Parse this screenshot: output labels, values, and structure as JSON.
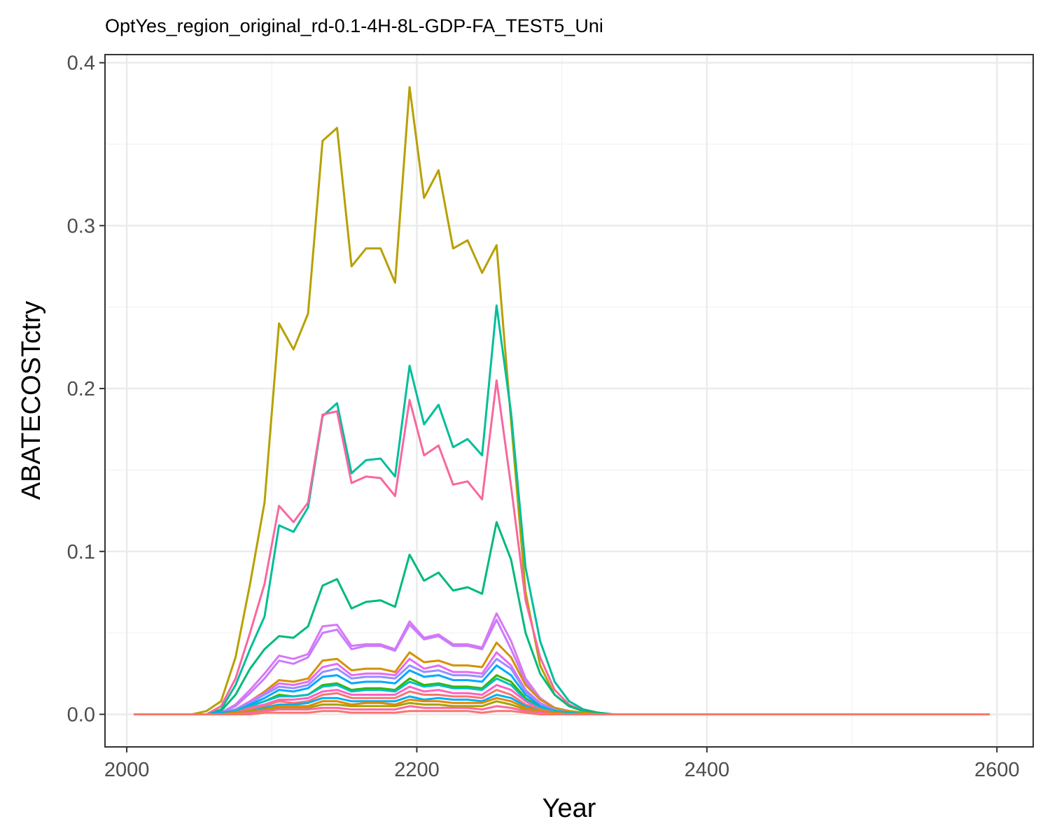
{
  "chart_data": {
    "type": "line",
    "title": "OptYes_region_original_rd-0.1-4H-8L-GDP-FA_TEST5_Uni",
    "xlabel": "Year",
    "ylabel": "ABATECOSTctry",
    "xlim": [
      1985,
      2625
    ],
    "ylim": [
      -0.02,
      0.405
    ],
    "x_ticks": [
      2000,
      2200,
      2400,
      2600
    ],
    "x_tick_labels": [
      "2000",
      "2200",
      "2400",
      "2600"
    ],
    "y_ticks": [
      0.0,
      0.1,
      0.2,
      0.3,
      0.4
    ],
    "y_tick_labels": [
      "0.0",
      "0.1",
      "0.2",
      "0.3",
      "0.4"
    ],
    "grid": true,
    "legend": "none",
    "x": [
      2005,
      2015,
      2025,
      2035,
      2045,
      2055,
      2065,
      2075,
      2085,
      2095,
      2105,
      2115,
      2125,
      2135,
      2145,
      2155,
      2165,
      2175,
      2185,
      2195,
      2205,
      2215,
      2225,
      2235,
      2245,
      2255,
      2265,
      2275,
      2285,
      2295,
      2305,
      2315,
      2325,
      2335,
      2345,
      2355,
      2365,
      2375,
      2385,
      2395,
      2405,
      2415,
      2425,
      2435,
      2445,
      2455,
      2465,
      2475,
      2485,
      2495,
      2505,
      2515,
      2525,
      2535,
      2545,
      2555,
      2565,
      2575,
      2585,
      2595
    ],
    "series": [
      {
        "color": "#B8A000",
        "values": [
          0,
          0,
          0,
          0,
          0,
          0.002,
          0.008,
          0.035,
          0.08,
          0.13,
          0.24,
          0.224,
          0.246,
          0.352,
          0.36,
          0.275,
          0.286,
          0.286,
          0.265,
          0.385,
          0.317,
          0.334,
          0.286,
          0.291,
          0.271,
          0.288,
          0.18,
          0.075,
          0.03,
          0.012,
          0.005,
          0.002,
          0.001,
          0,
          0,
          0,
          0,
          0,
          0,
          0,
          0,
          0,
          0,
          0,
          0,
          0,
          0,
          0,
          0,
          0,
          0,
          0,
          0,
          0,
          0,
          0,
          0,
          0,
          0,
          0
        ]
      },
      {
        "color": "#00BE9B",
        "values": [
          0,
          0,
          0,
          0,
          0,
          0,
          0.003,
          0.018,
          0.04,
          0.06,
          0.116,
          0.112,
          0.127,
          0.183,
          0.191,
          0.148,
          0.156,
          0.157,
          0.146,
          0.214,
          0.178,
          0.19,
          0.164,
          0.169,
          0.159,
          0.251,
          0.185,
          0.09,
          0.045,
          0.02,
          0.008,
          0.003,
          0.001,
          0,
          0,
          0,
          0,
          0,
          0,
          0,
          0,
          0,
          0,
          0,
          0,
          0,
          0,
          0,
          0,
          0,
          0,
          0,
          0,
          0,
          0,
          0,
          0,
          0,
          0,
          0
        ]
      },
      {
        "color": "#F8679F",
        "values": [
          0,
          0,
          0,
          0,
          0,
          0,
          0.005,
          0.022,
          0.05,
          0.08,
          0.128,
          0.118,
          0.13,
          0.184,
          0.186,
          0.142,
          0.146,
          0.145,
          0.134,
          0.193,
          0.159,
          0.165,
          0.141,
          0.143,
          0.132,
          0.205,
          0.14,
          0.07,
          0.035,
          0.015,
          0.006,
          0.002,
          0.001,
          0,
          0,
          0,
          0,
          0,
          0,
          0,
          0,
          0,
          0,
          0,
          0,
          0,
          0,
          0,
          0,
          0,
          0,
          0,
          0,
          0,
          0,
          0,
          0,
          0,
          0,
          0
        ]
      },
      {
        "color": "#00BA7A",
        "values": [
          0,
          0,
          0,
          0,
          0,
          0,
          0.002,
          0.012,
          0.028,
          0.04,
          0.048,
          0.047,
          0.054,
          0.079,
          0.083,
          0.065,
          0.069,
          0.07,
          0.066,
          0.098,
          0.082,
          0.087,
          0.076,
          0.078,
          0.074,
          0.118,
          0.095,
          0.05,
          0.025,
          0.012,
          0.005,
          0.002,
          0.001,
          0,
          0,
          0,
          0,
          0,
          0,
          0,
          0,
          0,
          0,
          0,
          0,
          0,
          0,
          0,
          0,
          0,
          0,
          0,
          0,
          0,
          0,
          0,
          0,
          0,
          0,
          0
        ]
      },
      {
        "color": "#D977F5",
        "values": [
          0,
          0,
          0,
          0,
          0,
          0,
          0.001,
          0.006,
          0.015,
          0.025,
          0.036,
          0.034,
          0.037,
          0.054,
          0.055,
          0.042,
          0.043,
          0.043,
          0.04,
          0.057,
          0.047,
          0.049,
          0.043,
          0.043,
          0.041,
          0.062,
          0.045,
          0.022,
          0.01,
          0.004,
          0.002,
          0.001,
          0,
          0,
          0,
          0,
          0,
          0,
          0,
          0,
          0,
          0,
          0,
          0,
          0,
          0,
          0,
          0,
          0,
          0,
          0,
          0,
          0,
          0,
          0,
          0,
          0,
          0,
          0,
          0
        ]
      },
      {
        "color": "#C77CFF",
        "values": [
          0,
          0,
          0,
          0,
          0,
          0,
          0.001,
          0.005,
          0.013,
          0.022,
          0.033,
          0.031,
          0.035,
          0.05,
          0.052,
          0.04,
          0.042,
          0.042,
          0.039,
          0.055,
          0.046,
          0.048,
          0.042,
          0.042,
          0.04,
          0.058,
          0.04,
          0.02,
          0.009,
          0.004,
          0.002,
          0.001,
          0,
          0,
          0,
          0,
          0,
          0,
          0,
          0,
          0,
          0,
          0,
          0,
          0,
          0,
          0,
          0,
          0,
          0,
          0,
          0,
          0,
          0,
          0,
          0,
          0,
          0,
          0,
          0
        ]
      },
      {
        "color": "#D39200",
        "values": [
          0,
          0,
          0,
          0,
          0,
          0,
          0.001,
          0.003,
          0.008,
          0.014,
          0.021,
          0.02,
          0.022,
          0.033,
          0.034,
          0.027,
          0.028,
          0.028,
          0.026,
          0.038,
          0.032,
          0.033,
          0.03,
          0.03,
          0.029,
          0.044,
          0.035,
          0.018,
          0.009,
          0.004,
          0.002,
          0.001,
          0,
          0,
          0,
          0,
          0,
          0,
          0,
          0,
          0,
          0,
          0,
          0,
          0,
          0,
          0,
          0,
          0,
          0,
          0,
          0,
          0,
          0,
          0,
          0,
          0,
          0,
          0,
          0
        ]
      },
      {
        "color": "#E76BF3",
        "values": [
          0,
          0,
          0,
          0,
          0,
          0,
          0.001,
          0.003,
          0.008,
          0.013,
          0.019,
          0.018,
          0.02,
          0.029,
          0.031,
          0.024,
          0.025,
          0.025,
          0.024,
          0.034,
          0.028,
          0.03,
          0.026,
          0.026,
          0.025,
          0.038,
          0.03,
          0.015,
          0.007,
          0.003,
          0.001,
          0,
          0,
          0,
          0,
          0,
          0,
          0,
          0,
          0,
          0,
          0,
          0,
          0,
          0,
          0,
          0,
          0,
          0,
          0,
          0,
          0,
          0,
          0,
          0,
          0,
          0,
          0,
          0,
          0
        ]
      },
      {
        "color": "#9590FF",
        "values": [
          0,
          0,
          0,
          0,
          0,
          0,
          0.001,
          0.003,
          0.007,
          0.012,
          0.017,
          0.016,
          0.018,
          0.026,
          0.028,
          0.022,
          0.023,
          0.023,
          0.022,
          0.03,
          0.026,
          0.027,
          0.024,
          0.024,
          0.023,
          0.034,
          0.028,
          0.014,
          0.006,
          0.003,
          0.001,
          0,
          0,
          0,
          0,
          0,
          0,
          0,
          0,
          0,
          0,
          0,
          0,
          0,
          0,
          0,
          0,
          0,
          0,
          0,
          0,
          0,
          0,
          0,
          0,
          0,
          0,
          0,
          0,
          0
        ]
      },
      {
        "color": "#00A9FF",
        "values": [
          0,
          0,
          0,
          0,
          0,
          0,
          0.001,
          0.002,
          0.006,
          0.01,
          0.015,
          0.014,
          0.016,
          0.023,
          0.024,
          0.019,
          0.02,
          0.02,
          0.019,
          0.027,
          0.023,
          0.024,
          0.021,
          0.021,
          0.02,
          0.03,
          0.024,
          0.012,
          0.005,
          0.002,
          0.001,
          0,
          0,
          0,
          0,
          0,
          0,
          0,
          0,
          0,
          0,
          0,
          0,
          0,
          0,
          0,
          0,
          0,
          0,
          0,
          0,
          0,
          0,
          0,
          0,
          0,
          0,
          0,
          0,
          0
        ]
      },
      {
        "color": "#39B600",
        "values": [
          0,
          0,
          0,
          0,
          0,
          0,
          0,
          0.002,
          0.005,
          0.008,
          0.012,
          0.011,
          0.012,
          0.018,
          0.019,
          0.015,
          0.016,
          0.016,
          0.015,
          0.022,
          0.018,
          0.019,
          0.017,
          0.017,
          0.016,
          0.024,
          0.02,
          0.01,
          0.004,
          0.002,
          0.001,
          0,
          0,
          0,
          0,
          0,
          0,
          0,
          0,
          0,
          0,
          0,
          0,
          0,
          0,
          0,
          0,
          0,
          0,
          0,
          0,
          0,
          0,
          0,
          0,
          0,
          0,
          0,
          0,
          0
        ]
      },
      {
        "color": "#00BFC4",
        "values": [
          0,
          0,
          0,
          0,
          0,
          0,
          0,
          0.002,
          0.005,
          0.008,
          0.011,
          0.011,
          0.012,
          0.017,
          0.018,
          0.014,
          0.015,
          0.015,
          0.014,
          0.02,
          0.017,
          0.018,
          0.016,
          0.016,
          0.015,
          0.022,
          0.018,
          0.009,
          0.004,
          0.002,
          0.001,
          0,
          0,
          0,
          0,
          0,
          0,
          0,
          0,
          0,
          0,
          0,
          0,
          0,
          0,
          0,
          0,
          0,
          0,
          0,
          0,
          0,
          0,
          0,
          0,
          0,
          0,
          0,
          0,
          0
        ]
      },
      {
        "color": "#FF61C3",
        "values": [
          0,
          0,
          0,
          0,
          0,
          0,
          0,
          0.001,
          0.004,
          0.006,
          0.009,
          0.009,
          0.01,
          0.014,
          0.015,
          0.012,
          0.012,
          0.012,
          0.012,
          0.017,
          0.014,
          0.015,
          0.013,
          0.013,
          0.012,
          0.018,
          0.015,
          0.008,
          0.003,
          0.001,
          0,
          0,
          0,
          0,
          0,
          0,
          0,
          0,
          0,
          0,
          0,
          0,
          0,
          0,
          0,
          0,
          0,
          0,
          0,
          0,
          0,
          0,
          0,
          0,
          0,
          0,
          0,
          0,
          0,
          0
        ]
      },
      {
        "color": "#F8766D",
        "values": [
          0,
          0,
          0,
          0,
          0,
          0,
          0,
          0.001,
          0.003,
          0.005,
          0.008,
          0.007,
          0.008,
          0.012,
          0.013,
          0.01,
          0.01,
          0.01,
          0.01,
          0.014,
          0.012,
          0.012,
          0.011,
          0.011,
          0.01,
          0.015,
          0.012,
          0.006,
          0.003,
          0.001,
          0,
          0,
          0,
          0,
          0,
          0,
          0,
          0,
          0,
          0,
          0,
          0,
          0,
          0,
          0,
          0,
          0,
          0,
          0,
          0,
          0,
          0,
          0,
          0,
          0,
          0,
          0,
          0,
          0,
          0
        ]
      },
      {
        "color": "#00B0F6",
        "values": [
          0,
          0,
          0,
          0,
          0,
          0,
          0,
          0.001,
          0.002,
          0.004,
          0.006,
          0.006,
          0.007,
          0.01,
          0.01,
          0.008,
          0.008,
          0.008,
          0.008,
          0.011,
          0.009,
          0.01,
          0.009,
          0.009,
          0.008,
          0.012,
          0.01,
          0.005,
          0.002,
          0.001,
          0,
          0,
          0,
          0,
          0,
          0,
          0,
          0,
          0,
          0,
          0,
          0,
          0,
          0,
          0,
          0,
          0,
          0,
          0,
          0,
          0,
          0,
          0,
          0,
          0,
          0,
          0,
          0,
          0,
          0
        ]
      },
      {
        "color": "#E58700",
        "values": [
          0,
          0,
          0,
          0,
          0,
          0,
          0,
          0.001,
          0.002,
          0.003,
          0.005,
          0.005,
          0.005,
          0.008,
          0.008,
          0.006,
          0.007,
          0.007,
          0.006,
          0.009,
          0.008,
          0.008,
          0.007,
          0.007,
          0.007,
          0.01,
          0.008,
          0.004,
          0.002,
          0.001,
          0,
          0,
          0,
          0,
          0,
          0,
          0,
          0,
          0,
          0,
          0,
          0,
          0,
          0,
          0,
          0,
          0,
          0,
          0,
          0,
          0,
          0,
          0,
          0,
          0,
          0,
          0,
          0,
          0,
          0
        ]
      },
      {
        "color": "#A3A500",
        "values": [
          0,
          0,
          0,
          0,
          0,
          0,
          0,
          0,
          0.002,
          0.003,
          0.004,
          0.004,
          0.004,
          0.006,
          0.006,
          0.005,
          0.005,
          0.005,
          0.005,
          0.007,
          0.006,
          0.006,
          0.005,
          0.005,
          0.005,
          0.008,
          0.006,
          0.003,
          0.001,
          0,
          0,
          0,
          0,
          0,
          0,
          0,
          0,
          0,
          0,
          0,
          0,
          0,
          0,
          0,
          0,
          0,
          0,
          0,
          0,
          0,
          0,
          0,
          0,
          0,
          0,
          0,
          0,
          0,
          0,
          0
        ]
      },
      {
        "color": "#FF67A4",
        "values": [
          0,
          0,
          0,
          0,
          0,
          0,
          0,
          0,
          0.001,
          0.002,
          0.003,
          0.003,
          0.003,
          0.004,
          0.004,
          0.003,
          0.003,
          0.003,
          0.003,
          0.005,
          0.004,
          0.004,
          0.004,
          0.004,
          0.003,
          0.005,
          0.004,
          0.002,
          0.001,
          0,
          0,
          0,
          0,
          0,
          0,
          0,
          0,
          0,
          0,
          0,
          0,
          0,
          0,
          0,
          0,
          0,
          0,
          0,
          0,
          0,
          0,
          0,
          0,
          0,
          0,
          0,
          0,
          0,
          0,
          0
        ]
      },
      {
        "color": "#F8766D",
        "values": [
          0,
          0,
          0,
          0,
          0,
          0,
          0,
          0,
          0,
          0.001,
          0.001,
          0.001,
          0.001,
          0.002,
          0.002,
          0.001,
          0.001,
          0.001,
          0.001,
          0.002,
          0.002,
          0.002,
          0.002,
          0.002,
          0.001,
          0.002,
          0.002,
          0.001,
          0,
          0,
          0,
          0,
          0,
          0,
          0,
          0,
          0,
          0,
          0,
          0,
          0,
          0,
          0,
          0,
          0,
          0,
          0,
          0,
          0,
          0,
          0,
          0,
          0,
          0,
          0,
          0,
          0,
          0,
          0,
          0
        ]
      }
    ]
  }
}
